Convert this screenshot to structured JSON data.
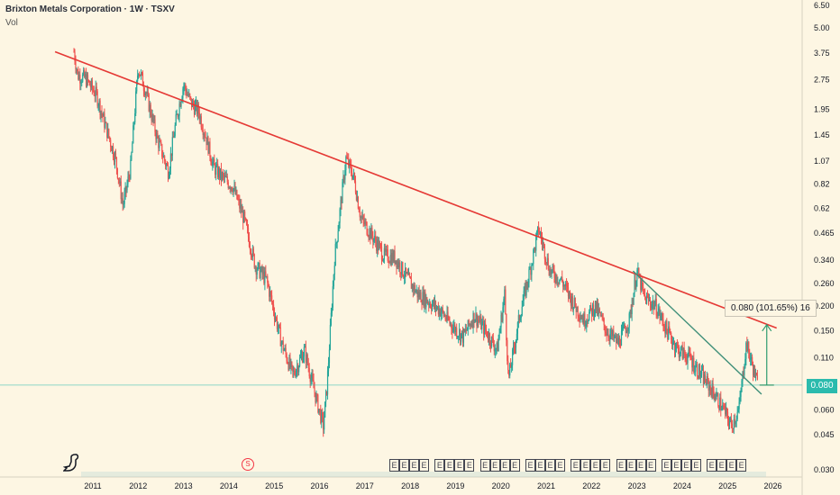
{
  "header": {
    "title": "Brixton Metals Corporation · 1W · TSXV",
    "volume_label": "Vol"
  },
  "price_tag": "0.080",
  "measure_label": "0.080 (101.65%) 16",
  "dividend_marker": "S",
  "earnings_marker": "E",
  "colors": {
    "up": "#26a69a",
    "down": "#ef5350",
    "resistance": "#e53935",
    "support": "#3f8f79",
    "background": "#fdf6e3"
  },
  "icons": [
    "dinosaur-logo-icon",
    "dividend-icon",
    "earnings-icon"
  ],
  "chart_data": {
    "type": "line",
    "title": "Brixton Metals Corporation · 1W · TSXV",
    "y_scale": "log",
    "ylim": [
      0.028,
      6.5
    ],
    "y_ticks": [
      "6.50",
      "5.00",
      "3.75",
      "2.75",
      "1.95",
      "1.45",
      "1.07",
      "0.82",
      "0.62",
      "0.465",
      "0.340",
      "0.260",
      "0.200",
      "0.150",
      "0.110",
      "0.080",
      "0.060",
      "0.045",
      "0.030"
    ],
    "x_ticks": [
      "2011",
      "2012",
      "2013",
      "2014",
      "2015",
      "2016",
      "2017",
      "2018",
      "2019",
      "2020",
      "2021",
      "2022",
      "2023",
      "2024",
      "2025",
      "2026"
    ],
    "series": [
      {
        "values_date_close": [
          [
            "2010-08",
            3.8
          ],
          [
            "2010-09",
            2.9
          ],
          [
            "2010-11",
            2.8
          ],
          [
            "2011-02",
            2.3
          ],
          [
            "2011-04",
            1.7
          ],
          [
            "2011-07",
            1.1
          ],
          [
            "2011-09",
            0.64
          ],
          [
            "2011-11",
            1.0
          ],
          [
            "2012-01",
            3.2
          ],
          [
            "2012-03",
            2.4
          ],
          [
            "2012-06",
            1.4
          ],
          [
            "2012-09",
            0.95
          ],
          [
            "2012-11",
            1.7
          ],
          [
            "2013-01",
            2.6
          ],
          [
            "2013-03",
            2.1
          ],
          [
            "2013-05",
            1.9
          ],
          [
            "2013-07",
            1.4
          ],
          [
            "2013-09",
            1.0
          ],
          [
            "2013-11",
            0.9
          ],
          [
            "2014-02",
            0.8
          ],
          [
            "2014-05",
            0.55
          ],
          [
            "2014-08",
            0.32
          ],
          [
            "2014-11",
            0.27
          ],
          [
            "2015-03",
            0.13
          ],
          [
            "2015-06",
            0.09
          ],
          [
            "2015-09",
            0.12
          ],
          [
            "2015-12",
            0.07
          ],
          [
            "2016-02",
            0.05
          ],
          [
            "2016-03",
            0.08
          ],
          [
            "2016-05",
            0.35
          ],
          [
            "2016-08",
            1.1
          ],
          [
            "2016-10",
            0.9
          ],
          [
            "2016-12",
            0.55
          ],
          [
            "2017-03",
            0.45
          ],
          [
            "2017-06",
            0.36
          ],
          [
            "2017-09",
            0.35
          ],
          [
            "2017-12",
            0.28
          ],
          [
            "2018-03",
            0.23
          ],
          [
            "2018-06",
            0.21
          ],
          [
            "2018-09",
            0.19
          ],
          [
            "2018-12",
            0.16
          ],
          [
            "2019-03",
            0.14
          ],
          [
            "2019-06",
            0.18
          ],
          [
            "2019-09",
            0.15
          ],
          [
            "2019-12",
            0.12
          ],
          [
            "2020-02",
            0.23
          ],
          [
            "2020-03",
            0.085
          ],
          [
            "2020-06",
            0.18
          ],
          [
            "2020-09",
            0.32
          ],
          [
            "2020-11",
            0.49
          ],
          [
            "2021-02",
            0.3
          ],
          [
            "2021-05",
            0.27
          ],
          [
            "2021-08",
            0.21
          ],
          [
            "2021-11",
            0.17
          ],
          [
            "2022-02",
            0.2
          ],
          [
            "2022-05",
            0.15
          ],
          [
            "2022-08",
            0.13
          ],
          [
            "2022-11",
            0.17
          ],
          [
            "2023-01",
            0.3
          ],
          [
            "2023-03",
            0.22
          ],
          [
            "2023-06",
            0.2
          ],
          [
            "2023-09",
            0.15
          ],
          [
            "2023-12",
            0.12
          ],
          [
            "2024-03",
            0.11
          ],
          [
            "2024-06",
            0.09
          ],
          [
            "2024-09",
            0.075
          ],
          [
            "2024-12",
            0.06
          ],
          [
            "2025-02",
            0.05
          ],
          [
            "2025-04",
            0.06
          ],
          [
            "2025-06",
            0.13
          ],
          [
            "2025-07",
            0.11
          ],
          [
            "2025-09",
            0.08
          ]
        ]
      }
    ],
    "trendlines": [
      {
        "name": "resistance",
        "from": [
          "2010-03",
          3.8
        ],
        "to": [
          "2026-02",
          0.155
        ]
      },
      {
        "name": "support",
        "from": [
          "2022-12",
          0.3
        ],
        "to": [
          "2025-10",
          0.072
        ]
      }
    ],
    "measure": {
      "from": [
        "2025-09",
        0.08
      ],
      "to": [
        "2025-09",
        0.161
      ],
      "change": "0.080 (101.65%) 16"
    },
    "current_price": 0.08,
    "earnings_markers_years": [
      2017.9,
      2018.9,
      2019.9,
      2020.9,
      2021.9,
      2022.9,
      2023.9,
      2024.9
    ],
    "dividend_marker_date": "2014-05"
  }
}
